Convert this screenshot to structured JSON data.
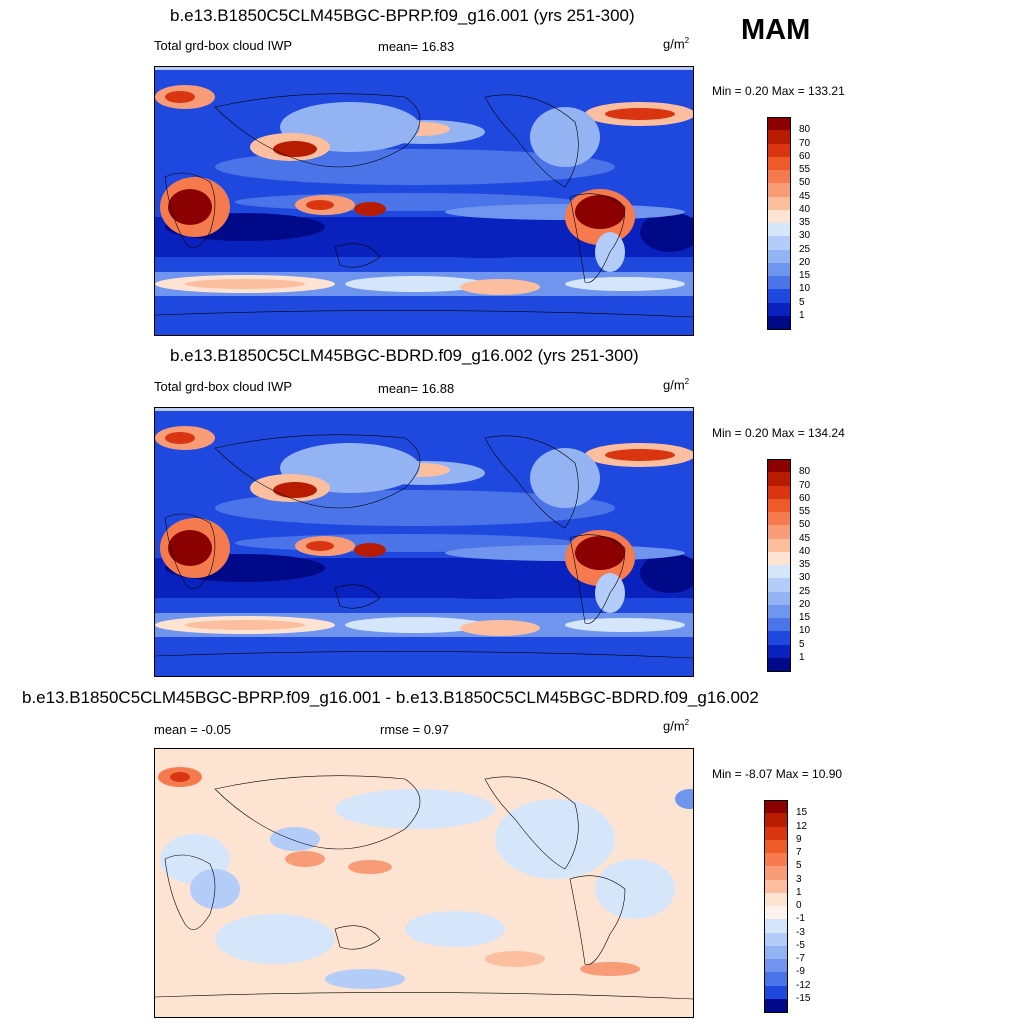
{
  "season": "MAM",
  "panels": [
    {
      "title": "b.e13.B1850C5CLM45BGC-BPRP.f09_g16.001 (yrs 251-300)",
      "left_label": "Total grd-box cloud IWP",
      "center_label": "mean=  16.83",
      "units": "g/m",
      "units_sup": "2",
      "minmax": "Min =   0.20 Max = 133.21",
      "colorbar_labels": [
        "80",
        "70",
        "60",
        "55",
        "50",
        "45",
        "40",
        "35",
        "30",
        "25",
        "20",
        "15",
        "10",
        "5",
        "1"
      ]
    },
    {
      "title": "b.e13.B1850C5CLM45BGC-BDRD.f09_g16.002 (yrs 251-300)",
      "left_label": "Total grd-box cloud IWP",
      "center_label": "mean=  16.88",
      "units": "g/m",
      "units_sup": "2",
      "minmax": "Min =   0.20 Max = 134.24",
      "colorbar_labels": [
        "80",
        "70",
        "60",
        "55",
        "50",
        "45",
        "40",
        "35",
        "30",
        "25",
        "20",
        "15",
        "10",
        "5",
        "1"
      ]
    },
    {
      "title": "b.e13.B1850C5CLM45BGC-BPRP.f09_g16.001 - b.e13.B1850C5CLM45BGC-BDRD.f09_g16.002",
      "left_label": "mean =  -0.05",
      "center_label": "rmse =   0.97",
      "units": "g/m",
      "units_sup": "2",
      "minmax": "Min =  -8.07 Max =  10.90",
      "colorbar_labels": [
        "15",
        "12",
        "9",
        "7",
        "5",
        "3",
        "1",
        "0",
        "-1",
        "-3",
        "-5",
        "-7",
        "-9",
        "-12",
        "-15"
      ]
    }
  ],
  "colors": {
    "abs_scale": [
      "#8b0000",
      "#b81c00",
      "#d83510",
      "#ee5a2a",
      "#f57b4f",
      "#f89c78",
      "#fbbfa0",
      "#fde3d2",
      "#d5e6fb",
      "#b4cdf8",
      "#93b3f3",
      "#6f95ee",
      "#4a74e8",
      "#1f49de",
      "#0a22bd",
      "#000a88"
    ],
    "diff_scale": [
      "#8b0000",
      "#b81c00",
      "#d83510",
      "#ee5a2a",
      "#f57b4f",
      "#f89c78",
      "#fbbfa0",
      "#fde3d2",
      "#fdf3ec",
      "#d5e6fb",
      "#b4cdf8",
      "#93b3f3",
      "#6f95ee",
      "#4a74e8",
      "#1f49de",
      "#000a88"
    ]
  }
}
